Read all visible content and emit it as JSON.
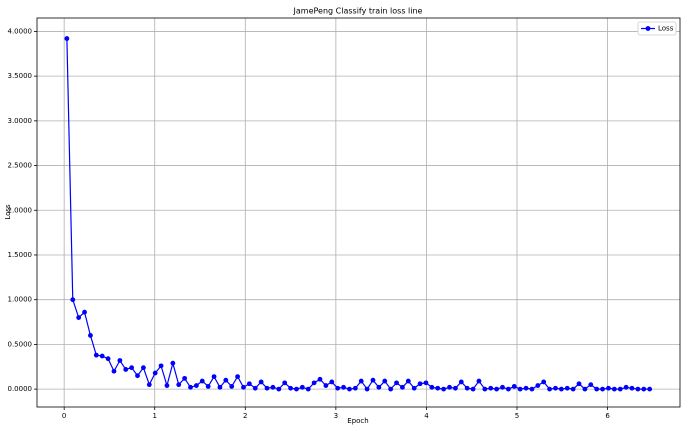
{
  "chart_data": {
    "type": "line",
    "title": "JamePeng Classify train loss line",
    "xlabel": "Epoch",
    "ylabel": "Loss",
    "x": [
      0.03,
      0.095,
      0.16,
      0.225,
      0.29,
      0.355,
      0.42,
      0.485,
      0.55,
      0.615,
      0.68,
      0.745,
      0.81,
      0.875,
      0.94,
      1.005,
      1.07,
      1.135,
      1.2,
      1.265,
      1.33,
      1.395,
      1.46,
      1.525,
      1.59,
      1.655,
      1.72,
      1.785,
      1.85,
      1.915,
      1.98,
      2.045,
      2.11,
      2.175,
      2.24,
      2.305,
      2.37,
      2.435,
      2.5,
      2.565,
      2.63,
      2.695,
      2.76,
      2.825,
      2.89,
      2.955,
      3.02,
      3.085,
      3.15,
      3.215,
      3.28,
      3.345,
      3.41,
      3.475,
      3.54,
      3.605,
      3.67,
      3.735,
      3.8,
      3.865,
      3.93,
      3.995,
      4.06,
      4.125,
      4.19,
      4.255,
      4.32,
      4.385,
      4.45,
      4.515,
      4.58,
      4.645,
      4.71,
      4.775,
      4.84,
      4.905,
      4.97,
      5.035,
      5.1,
      5.165,
      5.23,
      5.295,
      5.36,
      5.425,
      5.49,
      5.555,
      5.62,
      5.685,
      5.75,
      5.815,
      5.88,
      5.945,
      6.01,
      6.075,
      6.14,
      6.205,
      6.27,
      6.335,
      6.4,
      6.465
    ],
    "series": [
      {
        "name": "Loss",
        "color": "#0000ff",
        "values": [
          3.92,
          1.0,
          0.8,
          0.86,
          0.6,
          0.38,
          0.37,
          0.34,
          0.2,
          0.32,
          0.22,
          0.24,
          0.15,
          0.24,
          0.05,
          0.18,
          0.26,
          0.04,
          0.29,
          0.05,
          0.12,
          0.02,
          0.04,
          0.09,
          0.03,
          0.14,
          0.02,
          0.1,
          0.03,
          0.14,
          0.02,
          0.06,
          0.01,
          0.08,
          0.01,
          0.02,
          0.0,
          0.07,
          0.01,
          0.0,
          0.02,
          0.0,
          0.07,
          0.11,
          0.04,
          0.08,
          0.01,
          0.02,
          0.0,
          0.01,
          0.09,
          0.0,
          0.1,
          0.02,
          0.09,
          0.0,
          0.07,
          0.02,
          0.09,
          0.01,
          0.06,
          0.07,
          0.02,
          0.01,
          0.0,
          0.02,
          0.01,
          0.08,
          0.01,
          0.0,
          0.09,
          0.0,
          0.01,
          0.0,
          0.02,
          0.0,
          0.03,
          0.0,
          0.01,
          0.0,
          0.04,
          0.08,
          0.0,
          0.01,
          0.0,
          0.01,
          0.0,
          0.06,
          0.0,
          0.05,
          0.0,
          0.0,
          0.01,
          0.0,
          0.0,
          0.02,
          0.01,
          0.0,
          0.0,
          0.0
        ]
      }
    ],
    "xlim": [
      -0.3,
      6.8
    ],
    "ylim": [
      -0.2,
      4.15
    ],
    "xticks": [
      0,
      1,
      2,
      3,
      4,
      5,
      6
    ],
    "yticks": [
      {
        "value": 0,
        "label": "0.0000"
      },
      {
        "value": 0.5,
        "label": "0.5000"
      },
      {
        "value": 1,
        "label": "1.0000"
      },
      {
        "value": 1.5,
        "label": "1.5000"
      },
      {
        "value": 2,
        "label": "2.0000"
      },
      {
        "value": 2.5,
        "label": "2.5000"
      },
      {
        "value": 3,
        "label": "3.0000"
      },
      {
        "value": 3.5,
        "label": "3.5000"
      },
      {
        "value": 4,
        "label": "4.0000"
      }
    ],
    "grid": true,
    "legend": "upper right"
  }
}
